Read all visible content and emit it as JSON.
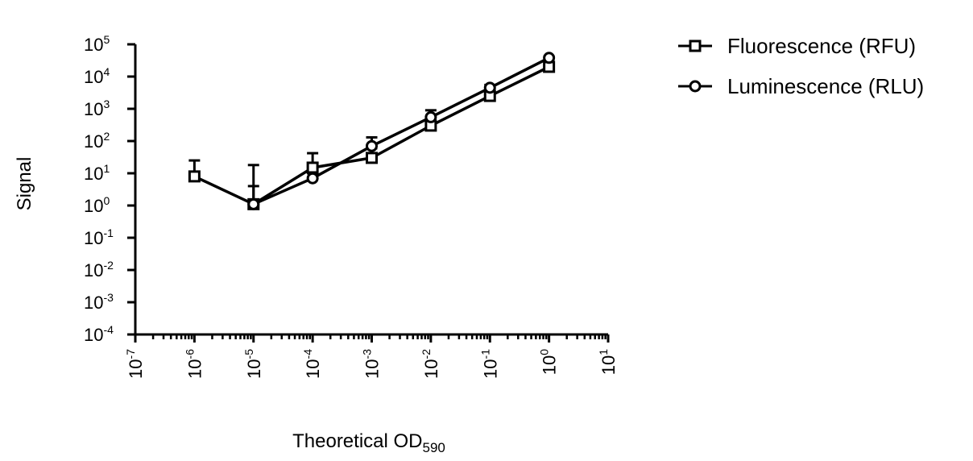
{
  "chart_data": {
    "type": "line",
    "title": "",
    "xlabel": {
      "main": "Theoretical OD",
      "sub": "590"
    },
    "ylabel": "Signal",
    "x_scale": "log",
    "y_scale": "log",
    "xlim": [
      1e-07,
      10
    ],
    "ylim": [
      0.0001,
      100000.0
    ],
    "x_ticks": [
      {
        "base": "10",
        "exp": "-7",
        "value": 1e-07
      },
      {
        "base": "10",
        "exp": "-6",
        "value": 1e-06
      },
      {
        "base": "10",
        "exp": "-5",
        "value": 1e-05
      },
      {
        "base": "10",
        "exp": "-4",
        "value": 0.0001
      },
      {
        "base": "10",
        "exp": "-3",
        "value": 0.001
      },
      {
        "base": "10",
        "exp": "-2",
        "value": 0.01
      },
      {
        "base": "10",
        "exp": "-1",
        "value": 0.1
      },
      {
        "base": "10",
        "exp": "0",
        "value": 1
      },
      {
        "base": "10",
        "exp": "1",
        "value": 10
      }
    ],
    "y_ticks": [
      {
        "base": "10",
        "exp": "-4",
        "value": 0.0001
      },
      {
        "base": "10",
        "exp": "-3",
        "value": 0.001
      },
      {
        "base": "10",
        "exp": "-2",
        "value": 0.01
      },
      {
        "base": "10",
        "exp": "-1",
        "value": 0.1
      },
      {
        "base": "10",
        "exp": "0",
        "value": 1
      },
      {
        "base": "10",
        "exp": "1",
        "value": 10
      },
      {
        "base": "10",
        "exp": "2",
        "value": 100
      },
      {
        "base": "10",
        "exp": "3",
        "value": 1000
      },
      {
        "base": "10",
        "exp": "4",
        "value": 10000
      },
      {
        "base": "10",
        "exp": "5",
        "value": 100000
      }
    ],
    "grid": false,
    "legend_position": "top-right",
    "series": [
      {
        "name": "Fluorescence (RFU)",
        "marker": "square",
        "color": "#000000",
        "x": [
          1e-06,
          1e-05,
          0.0001,
          0.001,
          0.01,
          0.1,
          1
        ],
        "y": [
          8,
          1.1,
          15,
          30,
          300,
          2500,
          20000
        ],
        "y_err_upper": [
          25,
          18,
          42,
          60,
          550,
          4000,
          28000
        ]
      },
      {
        "name": "Luminescence (RLU)",
        "marker": "circle",
        "color": "#000000",
        "x": [
          1e-05,
          0.0001,
          0.001,
          0.01,
          0.1,
          1
        ],
        "y": [
          1.1,
          7,
          70,
          550,
          4500,
          38000
        ],
        "y_err_upper": [
          4,
          10,
          130,
          900,
          5500,
          42000
        ]
      }
    ]
  }
}
